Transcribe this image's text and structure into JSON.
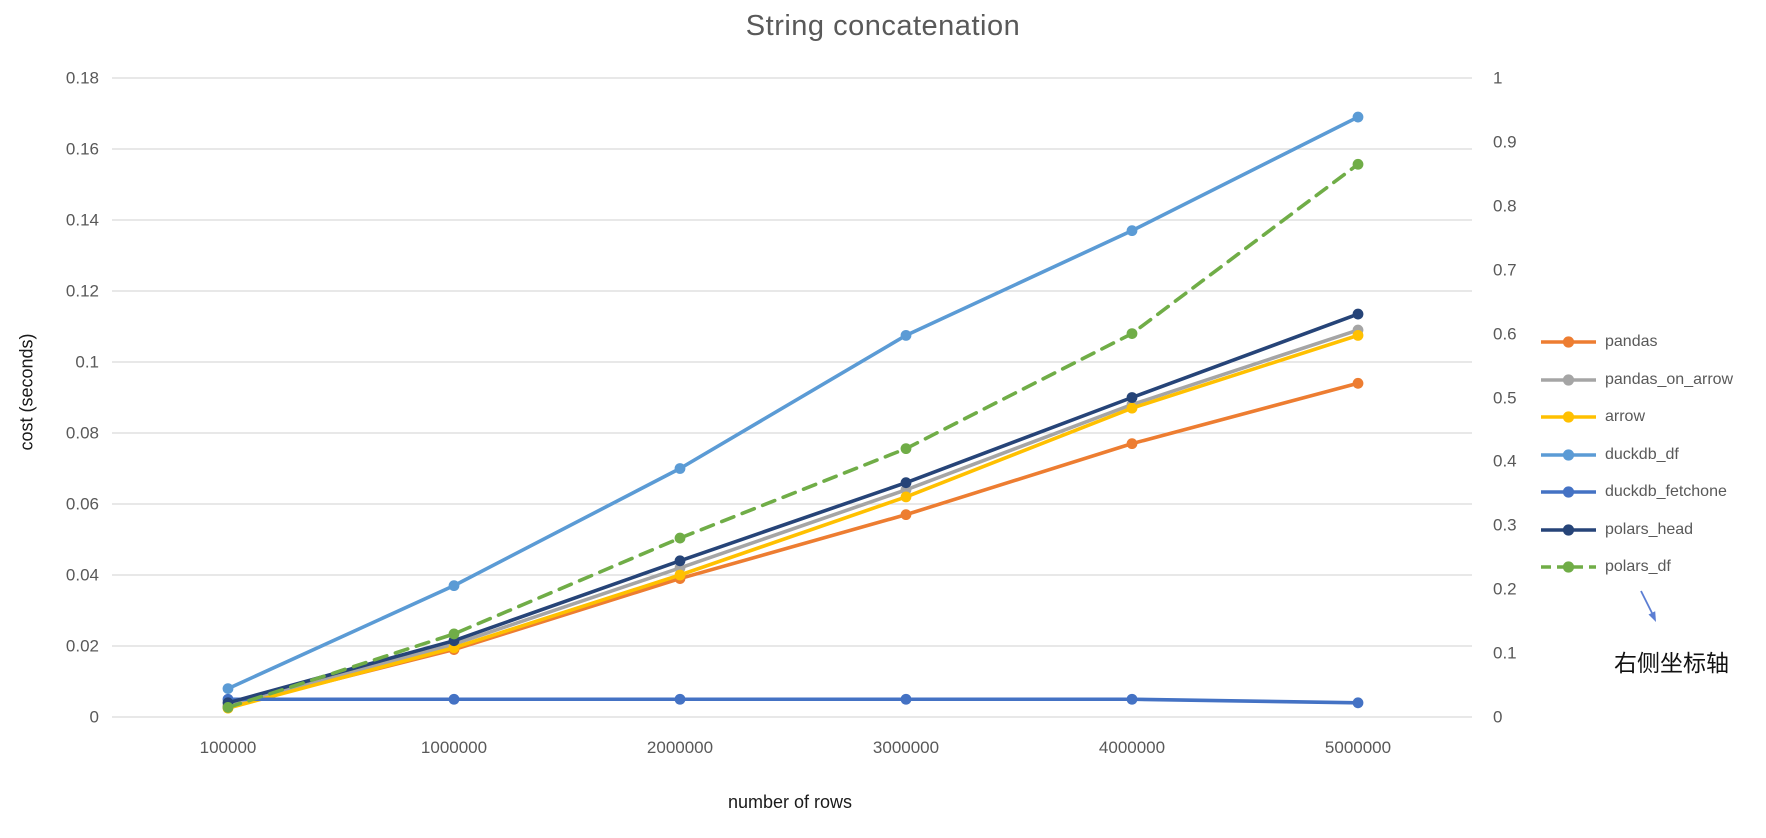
{
  "chart_data": {
    "type": "line",
    "title": "String concatenation",
    "xlabel": "number of rows",
    "ylabel": "cost (seconds)",
    "categories": [
      "100000",
      "1000000",
      "2000000",
      "3000000",
      "4000000",
      "5000000"
    ],
    "left_axis": {
      "min": 0,
      "max": 0.18,
      "ticks": [
        "0",
        "0.02",
        "0.04",
        "0.06",
        "0.08",
        "0.1",
        "0.12",
        "0.14",
        "0.16",
        "0.18"
      ]
    },
    "right_axis": {
      "min": 0,
      "max": 1,
      "ticks": [
        "0",
        "0.1",
        "0.2",
        "0.3",
        "0.4",
        "0.5",
        "0.6",
        "0.7",
        "0.8",
        "0.9",
        "1"
      ]
    },
    "grid": true,
    "legend_position": "right",
    "series": [
      {
        "name": "pandas",
        "color": "#ED7D31",
        "axis": "left",
        "dash": false,
        "values": [
          0.003,
          0.019,
          0.039,
          0.057,
          0.077,
          0.094
        ]
      },
      {
        "name": "pandas_on_arrow",
        "color": "#A5A5A5",
        "axis": "left",
        "dash": false,
        "values": [
          0.003,
          0.0205,
          0.042,
          0.064,
          0.088,
          0.109
        ]
      },
      {
        "name": "arrow",
        "color": "#FFC000",
        "axis": "left",
        "dash": false,
        "values": [
          0.0025,
          0.0195,
          0.04,
          0.062,
          0.087,
          0.1075
        ]
      },
      {
        "name": "duckdb_df",
        "color": "#5B9BD5",
        "axis": "left",
        "dash": false,
        "values": [
          0.008,
          0.037,
          0.07,
          0.1075,
          0.137,
          0.169
        ]
      },
      {
        "name": "duckdb_fetchone",
        "color": "#4472C4",
        "axis": "left",
        "dash": false,
        "values": [
          0.005,
          0.005,
          0.005,
          0.005,
          0.005,
          0.004
        ]
      },
      {
        "name": "polars_head",
        "color": "#264478",
        "axis": "left",
        "dash": false,
        "values": [
          0.004,
          0.0215,
          0.044,
          0.066,
          0.09,
          0.1135
        ]
      },
      {
        "name": "polars_df",
        "color": "#70AD47",
        "axis": "right",
        "dash": true,
        "values": [
          0.015,
          0.13,
          0.28,
          0.42,
          0.6,
          0.865
        ]
      }
    ],
    "annotation": {
      "text": "右侧坐标轴",
      "arrow_color": "#5C7ED3"
    }
  },
  "colors": {
    "background": "#FFFFFF",
    "gridline": "#D9D9D9",
    "tick_text": "#595959",
    "title_text": "#595959",
    "axis_title_text": "#1A1A1A",
    "legend_text": "#595959"
  }
}
